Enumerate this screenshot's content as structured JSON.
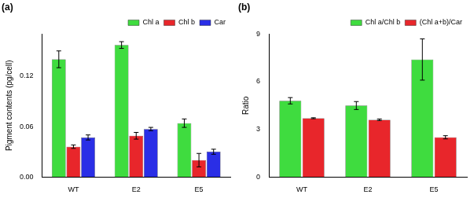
{
  "chart_data": [
    {
      "type": "bar",
      "title": "(a)",
      "y_label": "Pigment contents (pg/cell)",
      "categories": [
        "WT",
        "E2",
        "E5"
      ],
      "series": [
        {
          "name": "Chl a",
          "color": "#3fdc3f",
          "values": [
            0.14,
            0.157,
            0.064
          ],
          "errors": [
            0.01,
            0.004,
            0.005
          ]
        },
        {
          "name": "Chl b",
          "color": "#e8262b",
          "values": [
            0.036,
            0.049,
            0.02
          ],
          "errors": [
            0.002,
            0.004,
            0.008
          ]
        },
        {
          "name": "Car",
          "color": "#2a2ee6",
          "values": [
            0.047,
            0.057,
            0.03
          ],
          "errors": [
            0.003,
            0.002,
            0.003
          ]
        }
      ],
      "ylim": [
        0,
        0.17
      ],
      "yticks": [
        {
          "value": 0,
          "label": "0.00"
        },
        {
          "value": 0.06,
          "label": "0.06"
        },
        {
          "value": 0.12,
          "label": "0.12"
        }
      ],
      "grid": false,
      "legend": "upper right"
    },
    {
      "type": "bar",
      "title": "(b)",
      "y_label": "Ratio",
      "categories": [
        "WT",
        "E2",
        "E5"
      ],
      "series": [
        {
          "name": "Chl a/Chl b",
          "color": "#3fdc3f",
          "values": [
            4.8,
            4.5,
            7.4
          ],
          "errors": [
            0.2,
            0.25,
            1.3
          ]
        },
        {
          "name": "(Chl a+b)/Car",
          "color": "#e8262b",
          "values": [
            3.7,
            3.6,
            2.5
          ],
          "errors": [
            0.03,
            0.05,
            0.1
          ]
        }
      ],
      "ylim": [
        0,
        9
      ],
      "yticks": [
        0,
        3,
        6,
        9
      ],
      "grid": false,
      "legend": "upper right"
    }
  ]
}
